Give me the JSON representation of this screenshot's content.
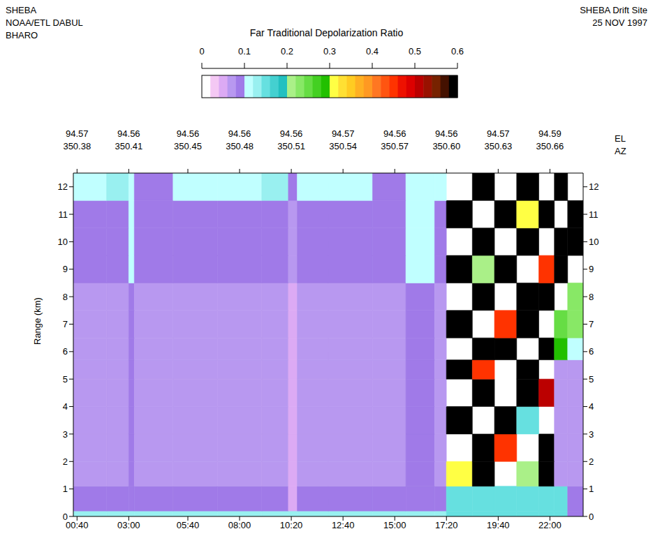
{
  "chart_data": {
    "type": "heatmap",
    "title": "Far Traditional Depolarization Ratio",
    "header_left": [
      "SHEBA",
      "NOAA/ETL DABUL",
      "BHARO"
    ],
    "header_right": [
      "SHEBA Drift Site",
      "25 NOV 1997"
    ],
    "y_label": "Range (km)",
    "xlim": [
      0.5,
      23.5
    ],
    "xticks": [
      {
        "value": 0.667,
        "label": "00:40"
      },
      {
        "value": 3,
        "label": "03:00"
      },
      {
        "value": 5.667,
        "label": "05:40"
      },
      {
        "value": 8,
        "label": "08:00"
      },
      {
        "value": 10.333,
        "label": "10:20"
      },
      {
        "value": 12.667,
        "label": "12:40"
      },
      {
        "value": 15,
        "label": "15:00"
      },
      {
        "value": 17.333,
        "label": "17:20"
      },
      {
        "value": 19.667,
        "label": "19:40"
      },
      {
        "value": 22,
        "label": "22:00"
      }
    ],
    "ylim": [
      0,
      12.5
    ],
    "yticks": [
      0,
      1,
      2,
      3,
      4,
      5,
      6,
      7,
      8,
      9,
      10,
      11,
      12
    ],
    "top_axis": {
      "labels": [
        "EL",
        "AZ"
      ],
      "el": [
        "94.57",
        "94.56",
        "94.56",
        "94.56",
        "94.56",
        "94.57",
        "94.56",
        "94.56",
        "94.57",
        "94.59"
      ],
      "az": [
        "350.38",
        "350.41",
        "350.45",
        "350.48",
        "350.51",
        "350.54",
        "350.57",
        "350.60",
        "350.63",
        "350.66"
      ]
    },
    "colorbar": {
      "range": [
        0,
        0.6
      ],
      "ticks": [
        0,
        0.1,
        0.2,
        0.3,
        0.4,
        0.5,
        0.6
      ]
    },
    "x_edges": [
      0.5,
      2,
      3,
      3.25,
      5,
      7,
      9,
      10.2,
      10.6,
      12,
      14,
      15.5,
      16.8,
      17.33,
      18.5,
      19.5,
      20.5,
      21.5,
      22.2,
      22.8,
      23.5
    ],
    "y_edges": [
      0,
      0.2,
      1.1,
      2,
      3,
      4,
      5,
      5.7,
      6.5,
      7.5,
      8.5,
      9.5,
      10.5,
      11.5,
      12.5
    ],
    "cells": [
      [
        0.12,
        0.12,
        0.12,
        0.12,
        0.12,
        0.12,
        0.12,
        0.12,
        0.12,
        0.12,
        0.12,
        0.12,
        0.12,
        0.15,
        0.15,
        0.15,
        0.15,
        0.15,
        0.15,
        0.08
      ],
      [
        0.08,
        0.08,
        0.09,
        0.08,
        0.08,
        0.08,
        0.08,
        0.05,
        0.08,
        0.08,
        0.08,
        0.085,
        0.08,
        0.15,
        0.15,
        0.15,
        0.15,
        0.15,
        0.15,
        0.08
      ],
      [
        0.06,
        0.06,
        0.08,
        0.06,
        0.06,
        0.06,
        0.06,
        0.04,
        0.06,
        0.06,
        0.06,
        0.08,
        0.06,
        0.3,
        0.6,
        null,
        0.2,
        0.6,
        0.06,
        0.06
      ],
      [
        0.06,
        0.06,
        0.08,
        0.06,
        0.06,
        0.06,
        0.06,
        0.04,
        0.06,
        0.06,
        0.06,
        0.08,
        0.06,
        null,
        0.6,
        0.45,
        null,
        0.6,
        0.06,
        0.06
      ],
      [
        0.06,
        0.06,
        0.08,
        0.06,
        0.06,
        0.06,
        0.06,
        0.04,
        0.06,
        0.06,
        0.06,
        0.08,
        0.06,
        0.6,
        null,
        0.6,
        0.15,
        null,
        0.06,
        0.06
      ],
      [
        0.06,
        0.06,
        0.08,
        0.06,
        0.06,
        0.06,
        0.06,
        0.04,
        0.06,
        0.06,
        0.06,
        0.08,
        0.06,
        null,
        0.6,
        null,
        0.6,
        0.5,
        0.06,
        0.06
      ],
      [
        0.065,
        0.065,
        0.085,
        0.065,
        0.065,
        0.065,
        0.065,
        0.045,
        0.065,
        0.065,
        0.065,
        0.085,
        0.065,
        0.6,
        0.45,
        null,
        0.6,
        null,
        0.07,
        0.07
      ],
      [
        0.07,
        0.07,
        0.09,
        0.07,
        0.07,
        0.07,
        0.07,
        0.05,
        0.07,
        0.07,
        0.07,
        0.09,
        0.07,
        null,
        0.6,
        0.6,
        null,
        0.6,
        0.28,
        0.1
      ],
      [
        0.07,
        0.07,
        0.09,
        0.07,
        0.07,
        0.07,
        0.07,
        0.05,
        0.07,
        0.07,
        0.07,
        0.09,
        0.07,
        0.6,
        null,
        0.45,
        0.6,
        null,
        0.25,
        0.22
      ],
      [
        0.075,
        0.075,
        0.095,
        0.075,
        0.075,
        0.075,
        0.075,
        0.055,
        0.075,
        0.075,
        0.075,
        0.095,
        0.075,
        null,
        0.6,
        null,
        0.6,
        0.6,
        null,
        0.22
      ],
      [
        0.08,
        0.08,
        0.1,
        0.08,
        0.08,
        0.08,
        0.08,
        0.06,
        0.08,
        0.08,
        0.08,
        0.1,
        0.08,
        0.6,
        0.2,
        0.6,
        null,
        0.45,
        0.6,
        null
      ],
      [
        0.085,
        0.085,
        0.105,
        0.085,
        0.085,
        0.085,
        0.085,
        0.065,
        0.085,
        0.085,
        0.085,
        0.105,
        0.085,
        null,
        0.6,
        null,
        0.6,
        null,
        0.6,
        0.6
      ],
      [
        0.09,
        0.09,
        0.11,
        0.09,
        0.09,
        0.09,
        0.09,
        0.07,
        0.09,
        0.09,
        0.09,
        0.11,
        0.09,
        0.6,
        null,
        0.6,
        0.3,
        0.6,
        null,
        0.6
      ],
      [
        0.1,
        0.12,
        0.1,
        0.09,
        0.11,
        0.1,
        0.12,
        0.08,
        0.1,
        0.11,
        0.09,
        0.1,
        0.1,
        null,
        0.6,
        null,
        0.6,
        null,
        0.6,
        null
      ]
    ]
  }
}
